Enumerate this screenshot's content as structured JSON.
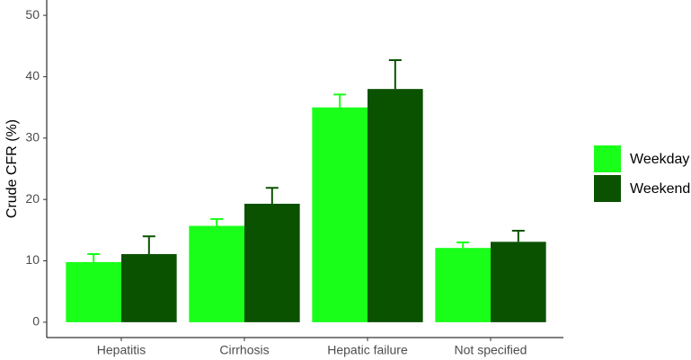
{
  "chart_data": {
    "type": "bar",
    "y_label": "Crude CFR (%)",
    "categories": [
      "Hepatitis",
      "Cirrhosis",
      "Hepatic failure",
      "Not specified"
    ],
    "series": [
      {
        "name": "Weekday",
        "color": "#1aff1a",
        "values": [
          9.8,
          15.7,
          35.0,
          12.1
        ],
        "errors": [
          1.3,
          1.1,
          2.1,
          0.9
        ]
      },
      {
        "name": "Weekend",
        "color": "#0b5200",
        "values": [
          11.1,
          19.3,
          38.0,
          13.1
        ],
        "errors": [
          2.9,
          2.6,
          4.7,
          1.8
        ]
      }
    ],
    "ylim": [
      -2.5,
      52.5
    ],
    "yticks": [
      0,
      10,
      20,
      30,
      40,
      50
    ],
    "legend": "right"
  }
}
